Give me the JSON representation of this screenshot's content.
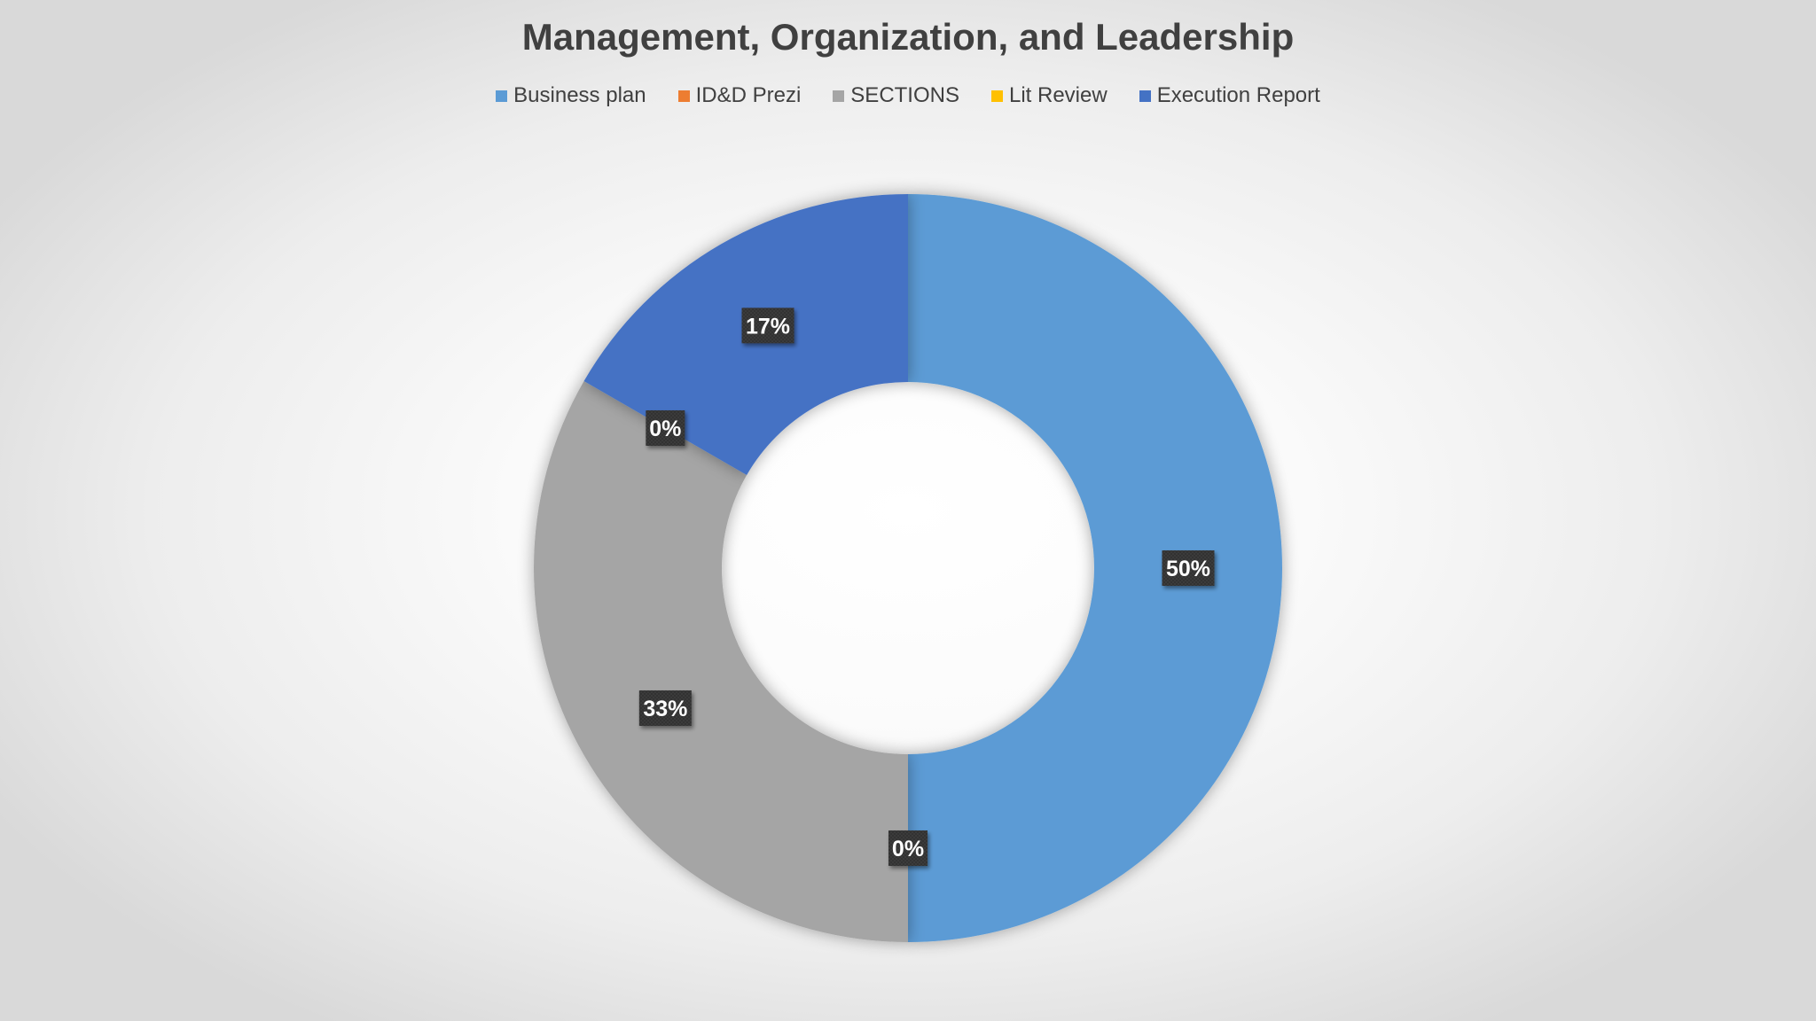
{
  "chart_data": {
    "type": "pie",
    "subtype": "donut",
    "title": "Management, Organization, and Leadership",
    "categories": [
      "Business plan",
      "ID&D Prezi",
      "SECTIONS",
      "Lit Review",
      "Execution Report"
    ],
    "values": [
      3,
      0,
      2,
      0,
      1
    ],
    "percent_labels": [
      "50%",
      "0%",
      "33%",
      "0%",
      "17%"
    ],
    "colors": [
      "#5b9bd5",
      "#ed7d31",
      "#a5a5a5",
      "#ffc000",
      "#4472c4"
    ],
    "legend_position": "top",
    "data_labels": true
  }
}
